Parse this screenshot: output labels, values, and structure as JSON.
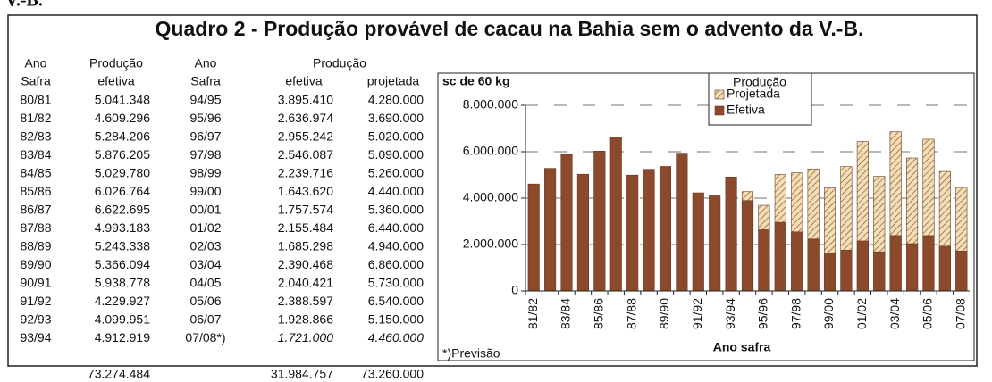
{
  "header": {
    "fragment": "V.-B.",
    "title": "Quadro 2 - Produção provável de cacau na Bahia sem o advento da V.-B."
  },
  "table": {
    "header_top": [
      "Ano",
      "Produção",
      "Ano",
      "Produção"
    ],
    "header_bottom": [
      "Safra",
      "efetiva",
      "Safra",
      "efetiva",
      "projetada"
    ],
    "rows": [
      [
        "80/81",
        "5.041.348",
        "94/95",
        "3.895.410",
        "4.280.000"
      ],
      [
        "81/82",
        "4.609.296",
        "95/96",
        "2.636.974",
        "3.690.000"
      ],
      [
        "82/83",
        "5.284.206",
        "96/97",
        "2.955.242",
        "5.020.000"
      ],
      [
        "83/84",
        "5.876.205",
        "97/98",
        "2.546.087",
        "5.090.000"
      ],
      [
        "84/85",
        "5.029.780",
        "98/99",
        "2.239.716",
        "5.260.000"
      ],
      [
        "85/86",
        "6.026.764",
        "99/00",
        "1.643.620",
        "4.440.000"
      ],
      [
        "86/87",
        "6.622.695",
        "00/01",
        "1.757.574",
        "5.360.000"
      ],
      [
        "87/88",
        "4.993.183",
        "01/02",
        "2.155.484",
        "6.440.000"
      ],
      [
        "88/89",
        "5.243.338",
        "02/03",
        "1.685.298",
        "4.940.000"
      ],
      [
        "89/90",
        "5.366.094",
        "03/04",
        "2.390.468",
        "6.860.000"
      ],
      [
        "90/91",
        "5.938.778",
        "04/05",
        "2.040.421",
        "5.730.000"
      ],
      [
        "91/92",
        "4.229.927",
        "05/06",
        "2.388.597",
        "6.540.000"
      ],
      [
        "92/93",
        "4.099.951",
        "06/07",
        "1.928.866",
        "5.150.000"
      ],
      [
        "93/94",
        "4.912.919",
        "07/08*)",
        "1.721.000",
        "4.460.000"
      ]
    ],
    "totals": [
      "73.274.484",
      "31.984.757",
      "73.260.000"
    ]
  },
  "chart_data": {
    "type": "bar",
    "barmode": "overlay",
    "ylabel": "sc de 60 kg",
    "xlabel": "Ano safra",
    "note": "*)Previsão",
    "legend_title": "Produção",
    "legend": "top-center",
    "categories": [
      "81/82",
      null,
      "83/84",
      null,
      "85/86",
      null,
      "87/88",
      null,
      "89/90",
      null,
      "91/92",
      null,
      "93/94",
      null,
      "95/96",
      null,
      "97/98",
      null,
      "99/00",
      null,
      "01/02",
      null,
      "03/04",
      null,
      "05/06",
      null,
      "07/08"
    ],
    "series": [
      {
        "name": "Projetada",
        "color": "#f3dfb5",
        "pattern": "hatch",
        "values": [
          null,
          null,
          null,
          null,
          null,
          null,
          null,
          null,
          null,
          null,
          null,
          null,
          null,
          4280000,
          3690000,
          5020000,
          5090000,
          5260000,
          4440000,
          5360000,
          6440000,
          4940000,
          6860000,
          5730000,
          6540000,
          5150000,
          4460000
        ]
      },
      {
        "name": "Efetiva",
        "color": "#8b4a2b",
        "values": [
          4609296,
          5284206,
          5876205,
          5029780,
          6026764,
          6622695,
          4993183,
          5243338,
          5366094,
          5938778,
          4229927,
          4099951,
          4912919,
          3895410,
          2636974,
          2955242,
          2546087,
          2239716,
          1643620,
          1757574,
          2155484,
          1685298,
          2390468,
          2040421,
          2388597,
          1928866,
          1721000
        ]
      }
    ],
    "ylim": [
      0,
      8000000
    ],
    "yticks": [
      0,
      {
        "value": 2000000,
        "label": "2.000.000"
      },
      {
        "value": 4000000,
        "label": "4.000.000"
      },
      {
        "value": 6000000,
        "label": "6.000.000"
      },
      {
        "value": 8000000,
        "label": "8.000.000"
      }
    ],
    "grid": true
  }
}
